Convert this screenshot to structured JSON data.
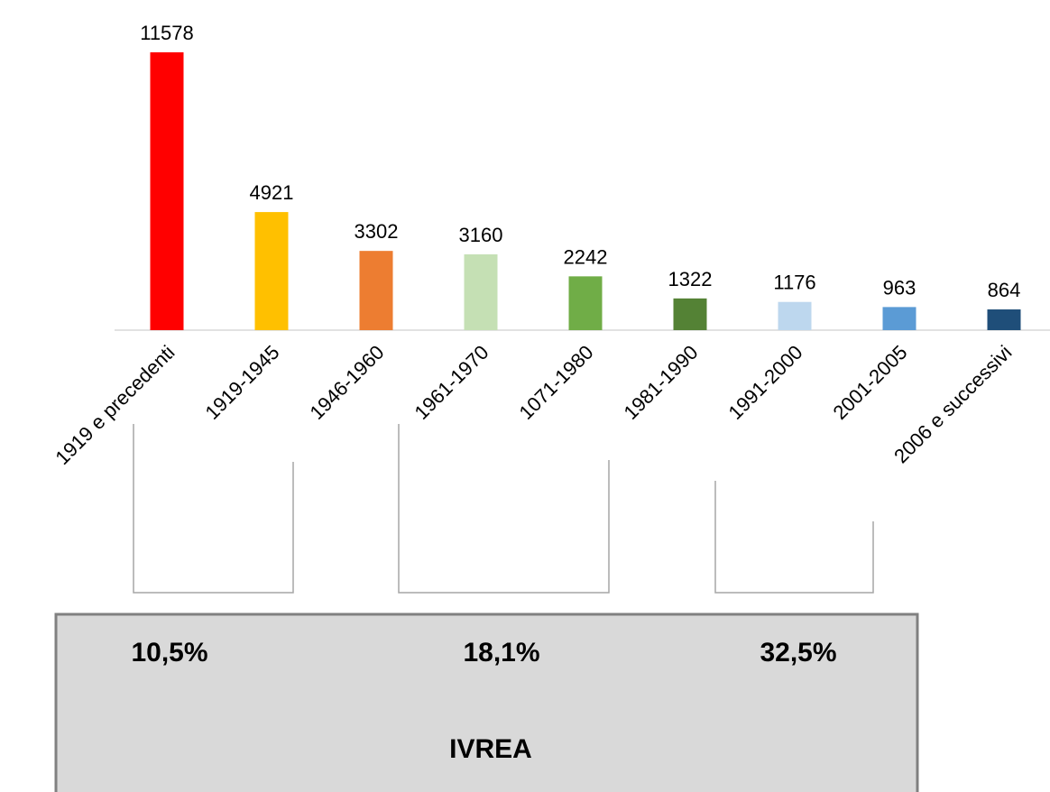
{
  "chart_data": {
    "type": "bar",
    "categories": [
      "1919 e precedenti",
      "1919-1945",
      "1946-1960",
      "1961-1970",
      "1071-1980",
      "1981-1990",
      "1991-2000",
      "2001-2005",
      "2006 e successivi"
    ],
    "values": [
      11578,
      4921,
      3302,
      3160,
      2242,
      1322,
      1176,
      963,
      864
    ],
    "colors": [
      "#ff0000",
      "#ffc000",
      "#ed7d31",
      "#c5e0b4",
      "#70ad47",
      "#548235",
      "#bdd7ee",
      "#5b9bd5",
      "#1f4e79"
    ],
    "annotations": [
      "10,5%",
      "18,1%",
      "32,5%"
    ],
    "box_label": "IVREA"
  }
}
